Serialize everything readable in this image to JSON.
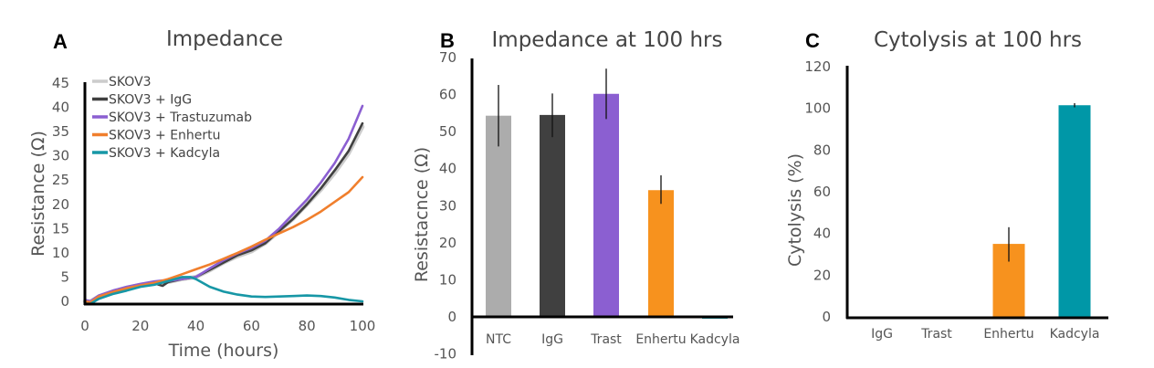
{
  "chart_data": [
    {
      "panel": "A",
      "type": "line",
      "title": "Impedance",
      "xlabel": "Time (hours)",
      "ylabel": "Resistance (Ω)",
      "xlim": [
        0,
        100
      ],
      "ylim": [
        0,
        45
      ],
      "xticks": [
        0,
        20,
        40,
        60,
        80,
        100
      ],
      "yticks": [
        0,
        5,
        10,
        15,
        20,
        25,
        30,
        35,
        40,
        45
      ],
      "grid": false,
      "legend_position": "top-left",
      "series": [
        {
          "name": "SKOV3",
          "color": "#cccccc",
          "x": [
            0,
            2,
            5,
            10,
            15,
            20,
            25,
            28,
            30,
            35,
            40,
            45,
            50,
            55,
            60,
            65,
            70,
            75,
            80,
            85,
            90,
            95,
            100
          ],
          "y": [
            0,
            0,
            1,
            2,
            2.8,
            3.4,
            3.8,
            4,
            4,
            4.6,
            5,
            6.4,
            8,
            9.3,
            10.3,
            12,
            14.5,
            17,
            20,
            23,
            26.5,
            30.5,
            36
          ]
        },
        {
          "name": "SKOV3 + IgG",
          "color": "#404040",
          "x": [
            0,
            2,
            5,
            10,
            15,
            20,
            25,
            28,
            30,
            35,
            40,
            45,
            50,
            55,
            60,
            65,
            70,
            75,
            80,
            85,
            90,
            95,
            100
          ],
          "y": [
            0,
            -0.2,
            1,
            2,
            2.8,
            3.3,
            3.7,
            3.2,
            4,
            4.6,
            5,
            6.5,
            8,
            9.5,
            10.5,
            12,
            14.5,
            17,
            20,
            23.3,
            27,
            31,
            36.7
          ]
        },
        {
          "name": "SKOV3 + Trastuzumab",
          "color": "#8b5fd1",
          "x": [
            0,
            2,
            5,
            10,
            15,
            20,
            25,
            28,
            30,
            35,
            40,
            45,
            50,
            55,
            60,
            65,
            70,
            75,
            80,
            85,
            90,
            95,
            100
          ],
          "y": [
            0.3,
            0,
            1.2,
            2.2,
            3,
            3.6,
            4.1,
            4.3,
            4.2,
            4.6,
            5,
            6.8,
            8.5,
            9.9,
            11,
            12.5,
            15,
            18,
            21,
            24.5,
            28.5,
            33.5,
            40.3
          ]
        },
        {
          "name": "SKOV3 + Enhertu",
          "color": "#f07f2d",
          "x": [
            0,
            2,
            5,
            10,
            15,
            20,
            25,
            30,
            35,
            40,
            45,
            50,
            55,
            60,
            65,
            70,
            75,
            80,
            85,
            90,
            95,
            100
          ],
          "y": [
            0,
            -0.2,
            1,
            1.9,
            2.7,
            3.3,
            3.8,
            4.6,
            5.6,
            6.6,
            7.6,
            8.8,
            10,
            11.3,
            12.7,
            14,
            15.3,
            16.8,
            18.5,
            20.5,
            22.5,
            25.6
          ]
        },
        {
          "name": "SKOV3 + Kadcyla",
          "color": "#1797a6",
          "x": [
            0,
            2,
            5,
            10,
            15,
            20,
            25,
            30,
            35,
            38,
            40,
            45,
            50,
            55,
            60,
            65,
            70,
            75,
            80,
            85,
            90,
            95,
            100
          ],
          "y": [
            -0.5,
            -0.5,
            0.5,
            1.5,
            2.2,
            3,
            3.4,
            4.2,
            5,
            5,
            4.6,
            3,
            2,
            1.4,
            1,
            0.9,
            1,
            1.1,
            1.2,
            1.1,
            0.8,
            0.3,
            0
          ]
        }
      ]
    },
    {
      "panel": "B",
      "type": "bar",
      "title": "Impedance at 100 hrs",
      "xlabel": "",
      "ylabel": "Resistacnce (Ω)",
      "ylim": [
        -10,
        70
      ],
      "yticks": [
        -10,
        0,
        10,
        20,
        30,
        40,
        50,
        60,
        70
      ],
      "grid": false,
      "categories": [
        "NTC",
        "IgG",
        "Trast",
        "Enhertu",
        "Kadcyla"
      ],
      "values": [
        54.3,
        54.5,
        60.2,
        34.2,
        -0.5
      ],
      "error_low": [
        46,
        48.5,
        53.4,
        30.5,
        -0.8
      ],
      "error_high": [
        62.6,
        60.3,
        67,
        38.2,
        -0.2
      ],
      "colors": [
        "#acacac",
        "#404040",
        "#8b5fd1",
        "#f7921e",
        "#1797a6"
      ]
    },
    {
      "panel": "C",
      "type": "bar",
      "title": "Cytolysis at 100 hrs",
      "xlabel": "",
      "ylabel": "Cytolysis (%)",
      "ylim": [
        0,
        120
      ],
      "yticks": [
        0,
        20,
        40,
        60,
        80,
        100,
        120
      ],
      "grid": false,
      "categories": [
        "IgG",
        "Trast",
        "Enhertu",
        "Kadcyla"
      ],
      "values": [
        0,
        0,
        35,
        101.5
      ],
      "error_low": [
        null,
        null,
        26.5,
        100.5
      ],
      "error_high": [
        null,
        null,
        43,
        102.5
      ],
      "colors": [
        "#404040",
        "#8b5fd1",
        "#f7921e",
        "#0097a7"
      ]
    }
  ]
}
